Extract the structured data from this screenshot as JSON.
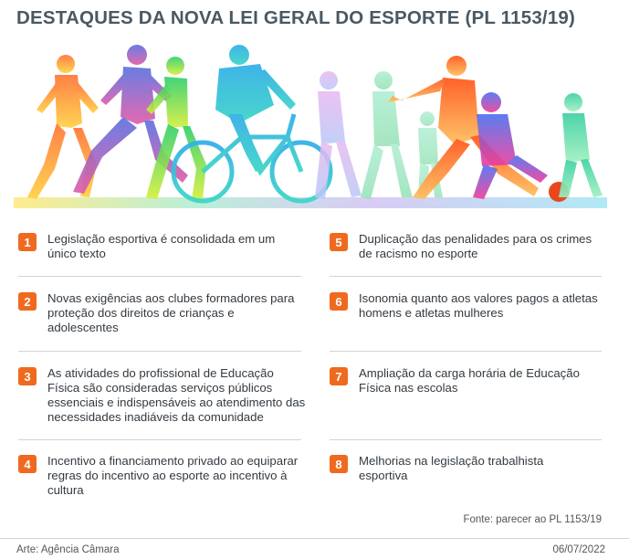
{
  "title": "DESTAQUES DA NOVA LEI GERAL DO ESPORTE (PL 1153/19)",
  "colors": {
    "accent": "#ef6a1f",
    "title": "#4a5863",
    "text": "#333a40"
  },
  "items": [
    {
      "num": "1",
      "text": "Legislação esportiva é consolidada em um único texto"
    },
    {
      "num": "2",
      "text": "Novas exigências aos clubes formadores para proteção dos direitos de crianças e adolescentes"
    },
    {
      "num": "3",
      "text": "As atividades do profissional de Educação Física são consideradas serviços públicos essenciais e indispensáveis ao atendimento das necessidades inadiáveis da comunidade"
    },
    {
      "num": "4",
      "text": "Incentivo a financiamento privado ao equiparar regras do incentivo ao esporte ao incentivo à cultura"
    },
    {
      "num": "5",
      "text": "Duplicação das penalidades para os crimes de racismo no esporte"
    },
    {
      "num": "6",
      "text": "Isonomia quanto aos valores pagos a atletas homens e atletas mulheres"
    },
    {
      "num": "7",
      "text": "Ampliação da carga horária de Educação Física nas escolas"
    },
    {
      "num": "8",
      "text": "Melhorias na legislação trabalhista esportiva"
    }
  ],
  "source": "Fonte: parecer ao PL 1153/19",
  "credit": "Arte: Agência Câmara",
  "date": "06/07/2022"
}
